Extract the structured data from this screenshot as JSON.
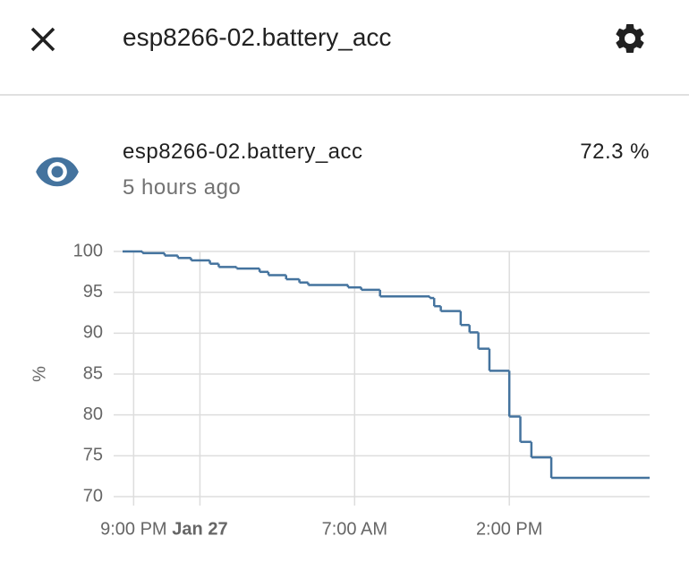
{
  "header": {
    "title": "esp8266-02.battery_acc"
  },
  "entity": {
    "name": "esp8266-02.battery_acc",
    "state": "72.3 %",
    "last_changed": "5 hours ago"
  },
  "chart_data": {
    "type": "line",
    "y_label": "%",
    "color": "#44739e",
    "step": "after",
    "grid": true,
    "x": [
      20.5,
      21.4,
      22.4,
      23.0,
      23.6,
      24.45,
      24.85,
      25.66,
      26.7,
      27.1,
      27.9,
      28.5,
      28.9,
      30.7,
      31.3,
      32.15,
      34.4,
      34.6,
      34.9,
      35.8,
      36.2,
      36.6,
      37.1,
      38.0,
      38.5,
      39.0,
      39.9,
      44.35
    ],
    "values": [
      100,
      99.8,
      99.5,
      99.2,
      98.9,
      98.5,
      98.1,
      97.9,
      97.5,
      97.1,
      96.6,
      96.2,
      95.9,
      95.6,
      95.3,
      94.5,
      94.3,
      93.3,
      92.7,
      91.0,
      90.1,
      88.1,
      85.4,
      79.8,
      76.7,
      74.8,
      72.3,
      72.3
    ],
    "xlim": [
      20.5,
      44.35
    ],
    "xticks": [
      {
        "value": 21,
        "label": "9:00 PM"
      },
      {
        "value": 24,
        "label": "Jan 27",
        "bold": true
      },
      {
        "value": 31,
        "label": "7:00 AM"
      },
      {
        "value": 38,
        "label": "2:00 PM"
      }
    ],
    "ylim": [
      70,
      100
    ],
    "yticks": [
      70,
      75,
      80,
      85,
      90,
      95,
      100
    ]
  }
}
